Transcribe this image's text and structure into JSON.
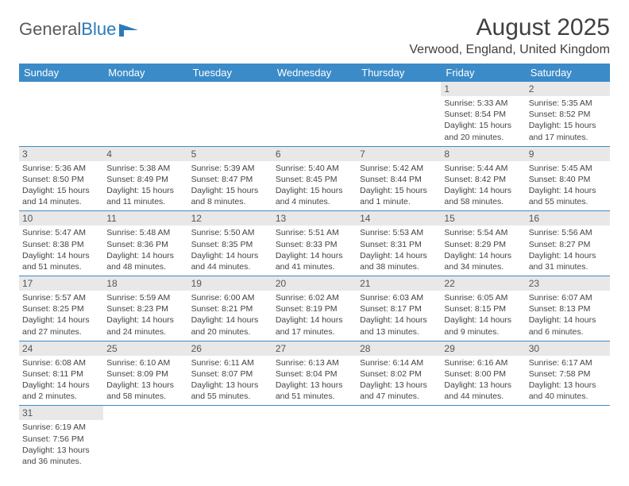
{
  "logo": {
    "text1": "General",
    "text2": "Blue"
  },
  "header": {
    "month_title": "August 2025",
    "location": "Verwood, England, United Kingdom"
  },
  "colors": {
    "header_bg": "#3b8bc8",
    "header_text": "#ffffff",
    "daynum_bg": "#e8e8e8",
    "row_border": "#3b8bc8",
    "logo_gray": "#5a5a5a",
    "logo_blue": "#2a7ab9"
  },
  "weekdays": [
    "Sunday",
    "Monday",
    "Tuesday",
    "Wednesday",
    "Thursday",
    "Friday",
    "Saturday"
  ],
  "weeks": [
    [
      {
        "day": "",
        "lines": []
      },
      {
        "day": "",
        "lines": []
      },
      {
        "day": "",
        "lines": []
      },
      {
        "day": "",
        "lines": []
      },
      {
        "day": "",
        "lines": []
      },
      {
        "day": "1",
        "lines": [
          "Sunrise: 5:33 AM",
          "Sunset: 8:54 PM",
          "Daylight: 15 hours",
          "and 20 minutes."
        ]
      },
      {
        "day": "2",
        "lines": [
          "Sunrise: 5:35 AM",
          "Sunset: 8:52 PM",
          "Daylight: 15 hours",
          "and 17 minutes."
        ]
      }
    ],
    [
      {
        "day": "3",
        "lines": [
          "Sunrise: 5:36 AM",
          "Sunset: 8:50 PM",
          "Daylight: 15 hours",
          "and 14 minutes."
        ]
      },
      {
        "day": "4",
        "lines": [
          "Sunrise: 5:38 AM",
          "Sunset: 8:49 PM",
          "Daylight: 15 hours",
          "and 11 minutes."
        ]
      },
      {
        "day": "5",
        "lines": [
          "Sunrise: 5:39 AM",
          "Sunset: 8:47 PM",
          "Daylight: 15 hours",
          "and 8 minutes."
        ]
      },
      {
        "day": "6",
        "lines": [
          "Sunrise: 5:40 AM",
          "Sunset: 8:45 PM",
          "Daylight: 15 hours",
          "and 4 minutes."
        ]
      },
      {
        "day": "7",
        "lines": [
          "Sunrise: 5:42 AM",
          "Sunset: 8:44 PM",
          "Daylight: 15 hours",
          "and 1 minute."
        ]
      },
      {
        "day": "8",
        "lines": [
          "Sunrise: 5:44 AM",
          "Sunset: 8:42 PM",
          "Daylight: 14 hours",
          "and 58 minutes."
        ]
      },
      {
        "day": "9",
        "lines": [
          "Sunrise: 5:45 AM",
          "Sunset: 8:40 PM",
          "Daylight: 14 hours",
          "and 55 minutes."
        ]
      }
    ],
    [
      {
        "day": "10",
        "lines": [
          "Sunrise: 5:47 AM",
          "Sunset: 8:38 PM",
          "Daylight: 14 hours",
          "and 51 minutes."
        ]
      },
      {
        "day": "11",
        "lines": [
          "Sunrise: 5:48 AM",
          "Sunset: 8:36 PM",
          "Daylight: 14 hours",
          "and 48 minutes."
        ]
      },
      {
        "day": "12",
        "lines": [
          "Sunrise: 5:50 AM",
          "Sunset: 8:35 PM",
          "Daylight: 14 hours",
          "and 44 minutes."
        ]
      },
      {
        "day": "13",
        "lines": [
          "Sunrise: 5:51 AM",
          "Sunset: 8:33 PM",
          "Daylight: 14 hours",
          "and 41 minutes."
        ]
      },
      {
        "day": "14",
        "lines": [
          "Sunrise: 5:53 AM",
          "Sunset: 8:31 PM",
          "Daylight: 14 hours",
          "and 38 minutes."
        ]
      },
      {
        "day": "15",
        "lines": [
          "Sunrise: 5:54 AM",
          "Sunset: 8:29 PM",
          "Daylight: 14 hours",
          "and 34 minutes."
        ]
      },
      {
        "day": "16",
        "lines": [
          "Sunrise: 5:56 AM",
          "Sunset: 8:27 PM",
          "Daylight: 14 hours",
          "and 31 minutes."
        ]
      }
    ],
    [
      {
        "day": "17",
        "lines": [
          "Sunrise: 5:57 AM",
          "Sunset: 8:25 PM",
          "Daylight: 14 hours",
          "and 27 minutes."
        ]
      },
      {
        "day": "18",
        "lines": [
          "Sunrise: 5:59 AM",
          "Sunset: 8:23 PM",
          "Daylight: 14 hours",
          "and 24 minutes."
        ]
      },
      {
        "day": "19",
        "lines": [
          "Sunrise: 6:00 AM",
          "Sunset: 8:21 PM",
          "Daylight: 14 hours",
          "and 20 minutes."
        ]
      },
      {
        "day": "20",
        "lines": [
          "Sunrise: 6:02 AM",
          "Sunset: 8:19 PM",
          "Daylight: 14 hours",
          "and 17 minutes."
        ]
      },
      {
        "day": "21",
        "lines": [
          "Sunrise: 6:03 AM",
          "Sunset: 8:17 PM",
          "Daylight: 14 hours",
          "and 13 minutes."
        ]
      },
      {
        "day": "22",
        "lines": [
          "Sunrise: 6:05 AM",
          "Sunset: 8:15 PM",
          "Daylight: 14 hours",
          "and 9 minutes."
        ]
      },
      {
        "day": "23",
        "lines": [
          "Sunrise: 6:07 AM",
          "Sunset: 8:13 PM",
          "Daylight: 14 hours",
          "and 6 minutes."
        ]
      }
    ],
    [
      {
        "day": "24",
        "lines": [
          "Sunrise: 6:08 AM",
          "Sunset: 8:11 PM",
          "Daylight: 14 hours",
          "and 2 minutes."
        ]
      },
      {
        "day": "25",
        "lines": [
          "Sunrise: 6:10 AM",
          "Sunset: 8:09 PM",
          "Daylight: 13 hours",
          "and 58 minutes."
        ]
      },
      {
        "day": "26",
        "lines": [
          "Sunrise: 6:11 AM",
          "Sunset: 8:07 PM",
          "Daylight: 13 hours",
          "and 55 minutes."
        ]
      },
      {
        "day": "27",
        "lines": [
          "Sunrise: 6:13 AM",
          "Sunset: 8:04 PM",
          "Daylight: 13 hours",
          "and 51 minutes."
        ]
      },
      {
        "day": "28",
        "lines": [
          "Sunrise: 6:14 AM",
          "Sunset: 8:02 PM",
          "Daylight: 13 hours",
          "and 47 minutes."
        ]
      },
      {
        "day": "29",
        "lines": [
          "Sunrise: 6:16 AM",
          "Sunset: 8:00 PM",
          "Daylight: 13 hours",
          "and 44 minutes."
        ]
      },
      {
        "day": "30",
        "lines": [
          "Sunrise: 6:17 AM",
          "Sunset: 7:58 PM",
          "Daylight: 13 hours",
          "and 40 minutes."
        ]
      }
    ],
    [
      {
        "day": "31",
        "lines": [
          "Sunrise: 6:19 AM",
          "Sunset: 7:56 PM",
          "Daylight: 13 hours",
          "and 36 minutes."
        ]
      },
      {
        "day": "",
        "lines": []
      },
      {
        "day": "",
        "lines": []
      },
      {
        "day": "",
        "lines": []
      },
      {
        "day": "",
        "lines": []
      },
      {
        "day": "",
        "lines": []
      },
      {
        "day": "",
        "lines": []
      }
    ]
  ]
}
